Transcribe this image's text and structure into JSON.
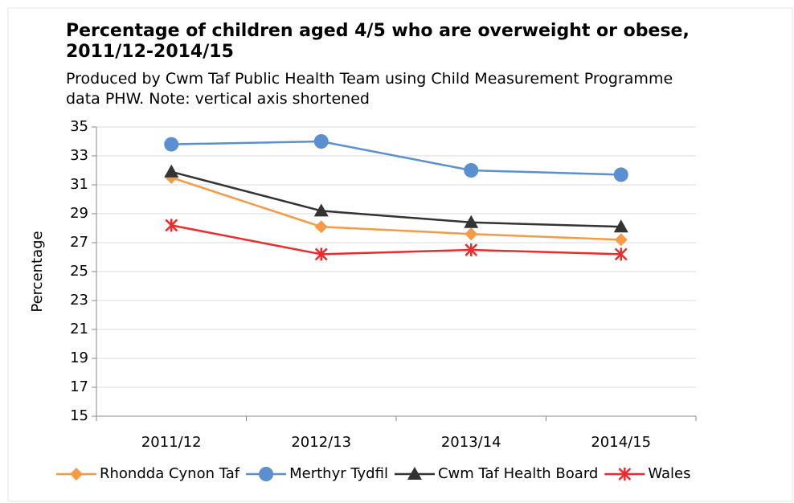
{
  "chart_data": {
    "type": "line",
    "title": "Percentage of children aged 4/5 who are overweight or obese, 2011/12-2014/15",
    "subtitle": "Produced by Cwm Taf Public Health Team using Child Measurement Programme data PHW. Note: vertical axis shortened",
    "y_label": "Percentage",
    "categories": [
      "2011/12",
      "2012/13",
      "2013/14",
      "2014/15"
    ],
    "series": [
      {
        "name": "Rhondda Cynon Taf",
        "color": "#f59a45",
        "marker": "diamond",
        "values": [
          31.5,
          28.1,
          27.6,
          27.2
        ]
      },
      {
        "name": "Merthyr Tydfil",
        "color": "#5a8fd2",
        "marker": "circle",
        "values": [
          33.8,
          34.0,
          32.0,
          31.7
        ]
      },
      {
        "name": "Cwm Taf Health Board",
        "color": "#333333",
        "marker": "triangle",
        "values": [
          31.9,
          29.2,
          28.4,
          28.1
        ]
      },
      {
        "name": "Wales",
        "color": "#ee2a2a",
        "marker": "cross",
        "values": [
          28.2,
          26.2,
          26.5,
          26.2
        ]
      }
    ],
    "ylim": [
      15,
      35
    ],
    "yticks": [
      15,
      17,
      19,
      21,
      23,
      25,
      27,
      29,
      31,
      33,
      35
    ],
    "grid": true,
    "legend": "bottom"
  }
}
